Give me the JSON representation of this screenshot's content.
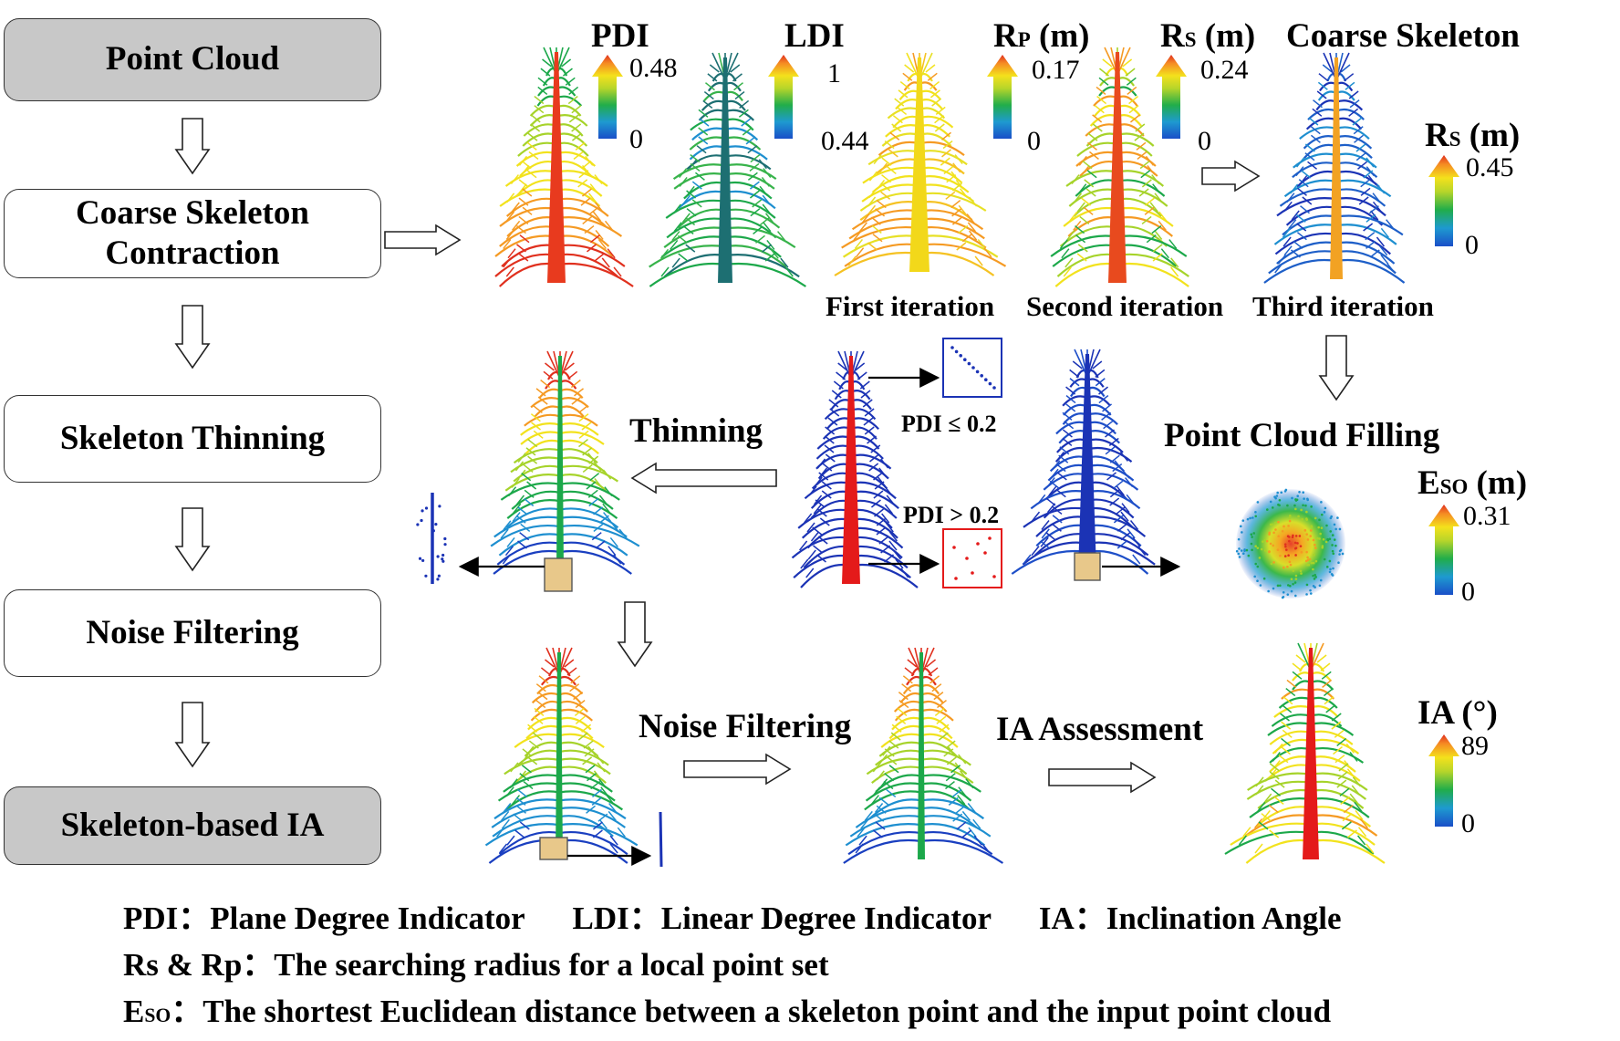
{
  "flowchart": {
    "steps": [
      {
        "label": "Point Cloud",
        "style": "grey"
      },
      {
        "label": "Coarse Skeleton\nContraction",
        "style": "white"
      },
      {
        "label": "Skeleton Thinning",
        "style": "white"
      },
      {
        "label": "Noise Filtering",
        "style": "white"
      },
      {
        "label": "Skeleton-based IA",
        "style": "grey"
      }
    ]
  },
  "top_row": {
    "pdi": {
      "title": "PDI",
      "max": "0.48",
      "min": "0"
    },
    "ldi": {
      "title": "LDI",
      "max": "1",
      "min": "0.44"
    },
    "rp": {
      "main": "R",
      "sub": "P",
      "unit": " (m)",
      "max": "0.17",
      "min": "0"
    },
    "rs": {
      "main": "R",
      "sub": "S",
      "unit": " (m)",
      "max": "0.24",
      "min": "0"
    },
    "coarse": {
      "title": "Coarse Skeleton",
      "main": "R",
      "sub": "S",
      "unit": " (m)",
      "max": "0.45",
      "min": "0"
    },
    "iterations": [
      "First iteration",
      "Second iteration",
      "Third iteration"
    ]
  },
  "middle_row": {
    "thinning_label": "Thinning",
    "pdi_low": "PDI ≤ 0.2",
    "pdi_high": "PDI > 0.2",
    "filling_label": "Point Cloud Filling",
    "eso": {
      "main": "E",
      "sub": "SO",
      "unit": " (m)",
      "max": "0.31",
      "min": "0"
    }
  },
  "bottom_row": {
    "noise_label": "Noise Filtering",
    "ia_label": "IA Assessment",
    "ia": {
      "title": "IA (°)",
      "max": "89",
      "min": "0"
    }
  },
  "legend": {
    "line1": "PDI：Plane Degree Indicator      LDI：Linear Degree Indicator      IA：Inclination Angle",
    "line2": "Rs & Rp：The searching radius for a local point set",
    "line3_main": "E",
    "line3_sub": "SO",
    "line3_rest": "：The shortest Euclidean distance between a skeleton point and the input point cloud"
  },
  "colors": {
    "jet": [
      "#1a3fc0",
      "#1e8fd0",
      "#1ca84a",
      "#a6d32a",
      "#f2e21d",
      "#f59a23",
      "#e0301e"
    ],
    "red": "#e41a1a",
    "blue": "#1b33b5",
    "teal": "#1d6f72",
    "bbox": "#e8c88a"
  },
  "icons": [
    "hollow-arrow-down-icon",
    "hollow-arrow-right-icon",
    "hollow-arrow-left-icon",
    "colorbar-arrow-icon"
  ]
}
